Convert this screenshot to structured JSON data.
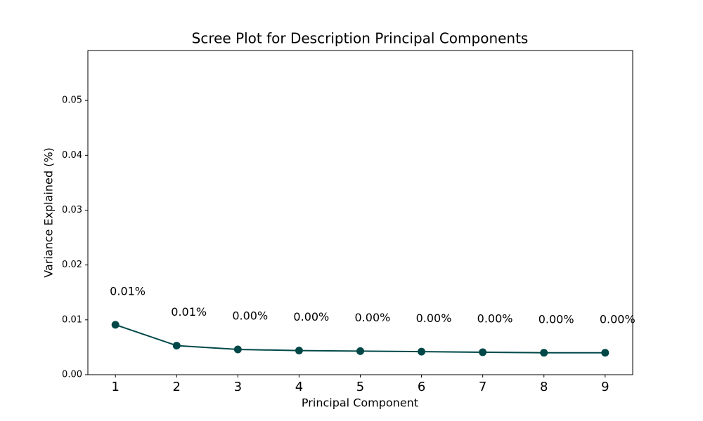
{
  "chart_data": {
    "type": "line",
    "title": "Scree Plot for Description Principal Components",
    "x_label": "Principal Component",
    "y_label": "Variance Explained (%)",
    "x": [
      1,
      2,
      3,
      4,
      5,
      6,
      7,
      8,
      9
    ],
    "series": [
      {
        "name": "Variance Explained",
        "color": "#004848",
        "values": [
          0.0091,
          0.0053,
          0.0046,
          0.0044,
          0.0043,
          0.0042,
          0.0041,
          0.004,
          0.004
        ],
        "value_labels": [
          "0.01%",
          "0.01%",
          "0.00%",
          "0.00%",
          "0.00%",
          "0.00%",
          "0.00%",
          "0.00%",
          "0.00%"
        ]
      }
    ],
    "xlim": [
      0.55,
      9.45
    ],
    "xticks": [
      1,
      2,
      3,
      4,
      5,
      6,
      7,
      8,
      9
    ],
    "ylim": [
      0,
      0.0591
    ],
    "yticks": [
      {
        "value": 0,
        "label": "0.00"
      },
      {
        "value": 0.01,
        "label": "0.01"
      },
      {
        "value": 0.02,
        "label": "0.02"
      },
      {
        "value": 0.03,
        "label": "0.03"
      },
      {
        "value": 0.04,
        "label": "0.04"
      },
      {
        "value": 0.05,
        "label": "0.05"
      }
    ],
    "grid": false
  }
}
